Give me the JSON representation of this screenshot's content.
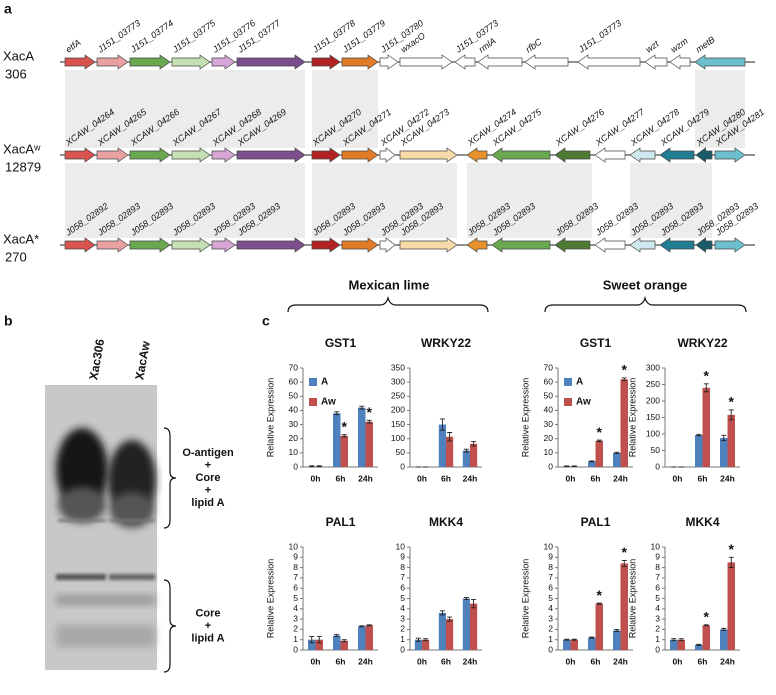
{
  "panel_a": {
    "label": "a",
    "rows": [
      {
        "name": "XacA",
        "strain": "306",
        "genes": [
          "etfA",
          "J151_03773",
          "J151_03774",
          "J151_03775",
          "J151_03776",
          "J151_03777",
          "J151_03778",
          "J151_03779",
          "J151_03780",
          "wxacO",
          "J151_03773",
          "rmlA",
          "rfbC",
          "J151_03773",
          "wzt",
          "wzm",
          "metB"
        ]
      },
      {
        "name": "XacAʷ",
        "strain": "12879",
        "genes": [
          "XCAW_04264",
          "XCAW_04265",
          "XCAW_04266",
          "XCAW_04267",
          "XCAW_04268",
          "XCAW_04269",
          "XCAW_04270",
          "XCAW_04271",
          "XCAW_04272",
          "XCAW_04273",
          "XCAW_04274",
          "XCAW_04275",
          "XCAW_04276",
          "XCAW_04277",
          "XCAW_04278",
          "XCAW_04279",
          "XCAW_04280",
          "XCAW_04281"
        ]
      },
      {
        "name": "XacA*",
        "strain": "270",
        "genes": [
          "J058_02892",
          "J058_02893",
          "J058_02893",
          "J058_02893",
          "J058_02893",
          "J058_02893",
          "J058_02893",
          "J058_02893",
          "J058_02893",
          "J058_02893",
          "J058_02893",
          "J058_02893",
          "J058_02893",
          "J058_02893",
          "J058_02893",
          "J058_02893",
          "J058_02893",
          "J058_02893"
        ]
      }
    ]
  },
  "panel_b": {
    "label": "b",
    "lanes": [
      "Xac306",
      "XacAw"
    ],
    "brackets": [
      {
        "lines": [
          "O-antigen",
          "+",
          "Core",
          "+",
          "lipid A"
        ]
      },
      {
        "lines": [
          "Core",
          "+",
          "lipid A"
        ]
      }
    ]
  },
  "panel_c": {
    "label": "c",
    "groups": [
      "Mexican lime",
      "Sweet orange"
    ]
  },
  "chart_data": [
    {
      "type": "bar",
      "title": "GST1",
      "y_label": "Relative Expression",
      "categories": [
        "0h",
        "6h",
        "24h"
      ],
      "ylim": [
        0,
        70
      ],
      "yticks": [
        0,
        10,
        20,
        30,
        40,
        50,
        60,
        70
      ],
      "series": [
        {
          "name": "A",
          "color": "#4f81bd",
          "values": [
            0.5,
            38,
            42
          ],
          "errors": [
            0.3,
            1,
            1
          ]
        },
        {
          "name": "Aw",
          "color": "#c0504d",
          "values": [
            0.5,
            22,
            32
          ],
          "errors": [
            0.3,
            0.8,
            1
          ],
          "marks": [
            null,
            "*",
            "*"
          ]
        }
      ]
    },
    {
      "type": "bar",
      "title": "WRKY22",
      "categories": [
        "0h",
        "6h",
        "24h"
      ],
      "ylim": [
        0,
        350
      ],
      "yticks": [
        0,
        50,
        100,
        150,
        200,
        250,
        300,
        350
      ],
      "series": [
        {
          "color": "#4f81bd",
          "values": [
            0,
            150,
            58
          ],
          "errors": [
            0,
            20,
            5
          ]
        },
        {
          "color": "#c0504d",
          "values": [
            0,
            107,
            82
          ],
          "errors": [
            0,
            15,
            8
          ]
        }
      ]
    },
    {
      "type": "bar",
      "title": "GST1",
      "y_label": "Relative Expression",
      "categories": [
        "0h",
        "6h",
        "24h"
      ],
      "ylim": [
        0,
        70
      ],
      "yticks": [
        0,
        10,
        20,
        30,
        40,
        50,
        60,
        70
      ],
      "series": [
        {
          "name": "A",
          "color": "#4f81bd",
          "values": [
            0.5,
            4,
            10
          ],
          "errors": [
            0.2,
            0.3,
            0.5
          ]
        },
        {
          "name": "Aw",
          "color": "#c0504d",
          "values": [
            0.5,
            18.5,
            62
          ],
          "errors": [
            0.2,
            0.5,
            1
          ],
          "marks": [
            null,
            "*",
            "*"
          ]
        }
      ]
    },
    {
      "type": "bar",
      "title": "WRKY22",
      "y_label": "Relative Expression",
      "categories": [
        "0h",
        "6h",
        "24h"
      ],
      "ylim": [
        0,
        300
      ],
      "yticks": [
        0,
        50,
        100,
        150,
        200,
        250,
        300
      ],
      "series": [
        {
          "color": "#4f81bd",
          "values": [
            0,
            97,
            88
          ],
          "errors": [
            0,
            2,
            8
          ]
        },
        {
          "color": "#c0504d",
          "values": [
            0,
            240,
            158
          ],
          "errors": [
            0,
            12,
            15
          ],
          "marks": [
            null,
            "*",
            "*"
          ]
        }
      ]
    },
    {
      "type": "bar",
      "title": "PAL1",
      "y_label": "Relative Expression",
      "categories": [
        "0h",
        "6h",
        "24h"
      ],
      "ylim": [
        0,
        10
      ],
      "yticks": [
        0,
        1,
        2,
        3,
        4,
        5,
        6,
        7,
        8,
        9,
        10
      ],
      "series": [
        {
          "color": "#4f81bd",
          "values": [
            1.0,
            1.4,
            2.3
          ],
          "errors": [
            0.3,
            0.1,
            0.05
          ]
        },
        {
          "color": "#c0504d",
          "values": [
            1.0,
            0.9,
            2.4
          ],
          "errors": [
            0.3,
            0.1,
            0.05
          ]
        }
      ]
    },
    {
      "type": "bar",
      "title": "MKK4",
      "categories": [
        "0h",
        "6h",
        "24h"
      ],
      "ylim": [
        0,
        10
      ],
      "yticks": [
        0,
        1,
        2,
        3,
        4,
        5,
        6,
        7,
        8,
        9,
        10
      ],
      "series": [
        {
          "color": "#4f81bd",
          "values": [
            1.0,
            3.6,
            5.0
          ],
          "errors": [
            0.15,
            0.2,
            0.1
          ]
        },
        {
          "color": "#c0504d",
          "values": [
            1.0,
            3.0,
            4.5
          ],
          "errors": [
            0.1,
            0.2,
            0.4
          ]
        }
      ]
    },
    {
      "type": "bar",
      "title": "PAL1",
      "y_label": "Relative Expression",
      "categories": [
        "0h",
        "6h",
        "24h"
      ],
      "ylim": [
        0,
        10
      ],
      "yticks": [
        0,
        1,
        2,
        3,
        4,
        5,
        6,
        7,
        8,
        9,
        10
      ],
      "series": [
        {
          "color": "#4f81bd",
          "values": [
            1.0,
            1.2,
            1.9
          ],
          "errors": [
            0.05,
            0.05,
            0.1
          ]
        },
        {
          "color": "#c0504d",
          "values": [
            1.0,
            4.5,
            8.4
          ],
          "errors": [
            0.05,
            0.05,
            0.3
          ],
          "marks": [
            null,
            "*",
            "*"
          ]
        }
      ]
    },
    {
      "type": "bar",
      "title": "MKK4",
      "y_label": "Relative Expression",
      "categories": [
        "0h",
        "6h",
        "24h"
      ],
      "ylim": [
        0,
        10
      ],
      "yticks": [
        0,
        1,
        2,
        3,
        4,
        5,
        6,
        7,
        8,
        9,
        10
      ],
      "series": [
        {
          "color": "#4f81bd",
          "values": [
            1.0,
            0.5,
            2.0
          ],
          "errors": [
            0.1,
            0.05,
            0.1
          ]
        },
        {
          "color": "#c0504d",
          "values": [
            1.0,
            2.4,
            8.5
          ],
          "errors": [
            0.1,
            0.05,
            0.5
          ],
          "marks": [
            null,
            "*",
            "*"
          ]
        }
      ]
    }
  ]
}
